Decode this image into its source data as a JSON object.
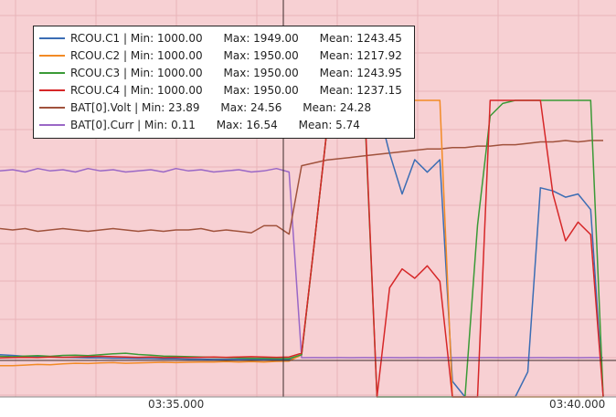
{
  "chart_data": {
    "type": "line",
    "x_ticks": [
      "03:35.000",
      "03:40.000"
    ],
    "grid": true,
    "legend_position": "top-left",
    "background_color": "#f7d0d3",
    "series": [
      {
        "name": "RCOU.C1",
        "color": "#3b6db4",
        "legend": "RCOU.C1 | Min: 1000.00      Max: 1949.00      Mean: 1243.45",
        "values": [
          1135,
          1133,
          1130,
          1129,
          1128,
          1127,
          1126,
          1125,
          1125,
          1124,
          1124,
          1123,
          1123,
          1122,
          1122,
          1121,
          1121,
          1120,
          1120,
          1120,
          1120,
          1120,
          1119,
          1120,
          1135,
          1490,
          1850,
          1940,
          1949,
          1949,
          1940,
          1780,
          1650,
          1760,
          1720,
          1760,
          1050,
          1000,
          1000,
          1000,
          1000,
          1000,
          1080,
          1670,
          1660,
          1640,
          1650,
          1600,
          1000
        ]
      },
      {
        "name": "RCOU.C2",
        "color": "#f28a25",
        "legend": "RCOU.C2 | Min: 1000.00      Max: 1950.00      Mean: 1217.92",
        "values": [
          1100,
          1100,
          1102,
          1104,
          1103,
          1106,
          1108,
          1107,
          1109,
          1110,
          1108,
          1109,
          1110,
          1111,
          1110,
          1111,
          1112,
          1112,
          1113,
          1112,
          1113,
          1112,
          1114,
          1115,
          1135,
          1490,
          1850,
          1940,
          1950,
          1950,
          1950,
          1950,
          1950,
          1950,
          1950,
          1950,
          1000,
          1000,
          1000,
          1000,
          1000,
          1000,
          1000,
          1000,
          1000,
          1000,
          1000,
          1000,
          1000
        ]
      },
      {
        "name": "RCOU.C3",
        "color": "#3a9a36",
        "legend": "RCOU.C3 | Min: 1000.00      Max: 1950.00      Mean: 1243.95",
        "values": [
          1130,
          1129,
          1131,
          1132,
          1130,
          1133,
          1134,
          1132,
          1135,
          1138,
          1140,
          1136,
          1134,
          1131,
          1130,
          1129,
          1128,
          1127,
          1126,
          1125,
          1124,
          1124,
          1123,
          1123,
          1135,
          1490,
          1850,
          1945,
          1950,
          1930,
          1000,
          1000,
          1000,
          1000,
          1000,
          1000,
          1000,
          1000,
          1550,
          1900,
          1940,
          1950,
          1950,
          1950,
          1950,
          1950,
          1950,
          1950,
          1000
        ]
      },
      {
        "name": "RCOU.C4",
        "color": "#d62728",
        "legend": "RCOU.C4 | Min: 1000.00      Max: 1950.00      Mean: 1237.15",
        "values": [
          1125,
          1126,
          1127,
          1126,
          1128,
          1127,
          1128,
          1129,
          1130,
          1129,
          1128,
          1127,
          1128,
          1126,
          1127,
          1126,
          1127,
          1128,
          1127,
          1128,
          1129,
          1128,
          1127,
          1128,
          1140,
          1490,
          1850,
          1948,
          1950,
          1950,
          1000,
          1350,
          1410,
          1380,
          1420,
          1370,
          1000,
          1000,
          1000,
          1950,
          1950,
          1950,
          1950,
          1950,
          1650,
          1500,
          1560,
          1520,
          1000
        ]
      },
      {
        "name": "BAT[0].Volt",
        "color": "#a0523c",
        "legend": "BAT[0].Volt | Min: 23.89      Max: 24.56      Mean: 24.28",
        "values": [
          23.93,
          23.92,
          23.93,
          23.91,
          23.92,
          23.93,
          23.92,
          23.91,
          23.92,
          23.93,
          23.92,
          23.91,
          23.92,
          23.91,
          23.92,
          23.92,
          23.93,
          23.91,
          23.92,
          23.91,
          23.9,
          23.95,
          23.95,
          23.89,
          24.38,
          24.4,
          24.42,
          24.43,
          24.44,
          24.45,
          24.46,
          24.47,
          24.48,
          24.49,
          24.5,
          24.5,
          24.51,
          24.51,
          24.52,
          24.52,
          24.53,
          24.53,
          24.54,
          24.55,
          24.55,
          24.56,
          24.55,
          24.56,
          24.56
        ]
      },
      {
        "name": "BAT[0].Curr",
        "color": "#9a67c6",
        "legend": "BAT[0].Curr | Min: 0.11      Max: 16.54      Mean: 5.74",
        "values": [
          16.3,
          16.4,
          16.2,
          16.5,
          16.3,
          16.4,
          16.2,
          16.5,
          16.3,
          16.4,
          16.2,
          16.3,
          16.4,
          16.2,
          16.5,
          16.3,
          16.4,
          16.2,
          16.3,
          16.4,
          16.2,
          16.3,
          16.5,
          16.2,
          0.11,
          0.12,
          0.11,
          0.12,
          0.11,
          0.12,
          0.11,
          0.12,
          0.11,
          0.12,
          0.11,
          0.12,
          0.11,
          0.12,
          0.11,
          0.12,
          0.11,
          0.12,
          0.11,
          0.12,
          0.11,
          0.12,
          0.11,
          0.12,
          0.11
        ]
      }
    ]
  }
}
